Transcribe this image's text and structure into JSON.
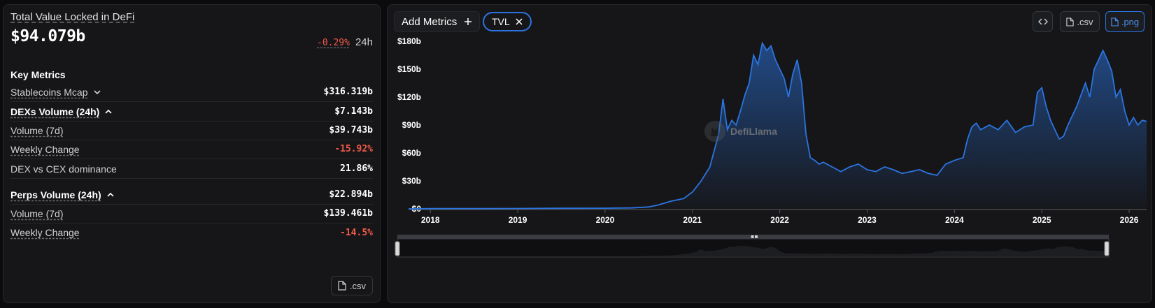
{
  "summary": {
    "title": "Total Value Locked in DeFi",
    "value": "$94.079b",
    "change": "-0.29%",
    "change_period": "24h"
  },
  "key_metrics": {
    "title": "Key Metrics",
    "rows": [
      {
        "label": "Stablecoins Mcap",
        "value": "$316.319b"
      },
      {
        "label": "DEXs Volume (24h)",
        "value": "$7.143b"
      },
      {
        "label": "Volume (7d)",
        "value": "$39.743b"
      },
      {
        "label": "Weekly Change",
        "value": "-15.92%"
      },
      {
        "label": "DEX vs CEX dominance",
        "value": "21.86%"
      },
      {
        "label": "Perps Volume (24h)",
        "value": "$22.894b"
      },
      {
        "label": "Volume (7d)",
        "value": "$139.461b"
      },
      {
        "label": "Weekly Change",
        "value": "-14.5%"
      }
    ],
    "csv_label": ".csv"
  },
  "toolbar": {
    "add_metrics_label": "Add Metrics",
    "metric_chip": "TVL",
    "csv_label": ".csv",
    "png_label": ".png"
  },
  "watermark": "DefiLlama",
  "colors": {
    "line": "#2b74e0",
    "negative": "#f0594a",
    "accent": "#2b74e0"
  },
  "chart_data": {
    "type": "area",
    "series": [
      {
        "name": "TVL"
      }
    ],
    "y_ticks": [
      "$0",
      "$30b",
      "$60b",
      "$90b",
      "$120b",
      "$150b",
      "$180b"
    ],
    "x_ticks": [
      "2018",
      "2019",
      "2020",
      "2021",
      "2022",
      "2023",
      "2024",
      "2025",
      "2026"
    ],
    "ylim": [
      0,
      180
    ],
    "x": [
      2017.75,
      2018.0,
      2018.5,
      2019.0,
      2019.5,
      2020.0,
      2020.3,
      2020.5,
      2020.6,
      2020.75,
      2020.9,
      2021.0,
      2021.1,
      2021.2,
      2021.3,
      2021.35,
      2021.4,
      2021.45,
      2021.5,
      2021.55,
      2021.6,
      2021.65,
      2021.7,
      2021.75,
      2021.8,
      2021.85,
      2021.9,
      2021.95,
      2022.0,
      2022.05,
      2022.1,
      2022.15,
      2022.2,
      2022.25,
      2022.3,
      2022.35,
      2022.4,
      2022.45,
      2022.5,
      2022.6,
      2022.7,
      2022.8,
      2022.9,
      2023.0,
      2023.1,
      2023.2,
      2023.3,
      2023.4,
      2023.5,
      2023.6,
      2023.7,
      2023.8,
      2023.9,
      2024.0,
      2024.1,
      2024.15,
      2024.2,
      2024.25,
      2024.3,
      2024.4,
      2024.5,
      2024.6,
      2024.7,
      2024.8,
      2024.9,
      2024.95,
      2025.0,
      2025.05,
      2025.1,
      2025.15,
      2025.2,
      2025.25,
      2025.3,
      2025.4,
      2025.5,
      2025.55,
      2025.6,
      2025.65,
      2025.7,
      2025.75,
      2025.8,
      2025.85,
      2025.9,
      2025.95,
      2026.0,
      2026.05,
      2026.1,
      2026.15,
      2026.2
    ],
    "y": [
      0,
      0.2,
      0.3,
      0.4,
      0.6,
      0.7,
      1,
      2,
      4,
      8,
      11,
      18,
      30,
      45,
      80,
      118,
      85,
      95,
      90,
      105,
      122,
      135,
      165,
      155,
      178,
      170,
      175,
      160,
      150,
      140,
      120,
      145,
      160,
      135,
      80,
      55,
      52,
      48,
      50,
      45,
      40,
      45,
      48,
      42,
      40,
      45,
      42,
      38,
      40,
      42,
      38,
      36,
      48,
      52,
      55,
      75,
      88,
      92,
      85,
      90,
      85,
      95,
      82,
      88,
      90,
      125,
      130,
      110,
      95,
      85,
      75,
      78,
      90,
      110,
      135,
      120,
      150,
      160,
      170,
      160,
      148,
      120,
      128,
      105,
      90,
      98,
      90,
      95,
      94
    ]
  }
}
